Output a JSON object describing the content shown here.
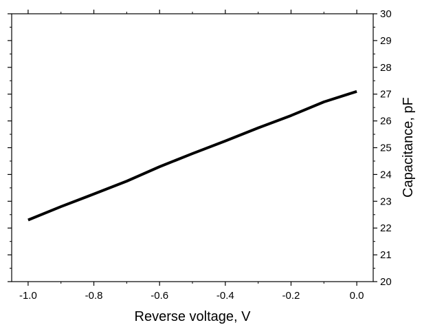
{
  "chart_data": {
    "type": "line",
    "title": "",
    "xlabel": "Reverse voltage, V",
    "ylabel": "Capacitance, pF",
    "y_axis_side": "right",
    "xlim": [
      -1.05,
      0.05
    ],
    "ylim": [
      20,
      30
    ],
    "x_ticks": [
      -1.0,
      -0.8,
      -0.6,
      -0.4,
      -0.2,
      0.0
    ],
    "x_tick_labels": [
      "-1.0",
      "-0.8",
      "-0.6",
      "-0.4",
      "-0.2",
      "0.0"
    ],
    "y_ticks": [
      20,
      21,
      22,
      23,
      24,
      25,
      26,
      27,
      28,
      29,
      30
    ],
    "y_tick_labels": [
      "20",
      "21",
      "22",
      "23",
      "24",
      "25",
      "26",
      "27",
      "28",
      "29",
      "30"
    ],
    "grid": false,
    "legend": "none",
    "series": [
      {
        "color": "#000000",
        "x": [
          -1.0,
          -0.9,
          -0.8,
          -0.7,
          -0.6,
          -0.5,
          -0.4,
          -0.3,
          -0.2,
          -0.1,
          0.0
        ],
        "y": [
          22.3,
          22.8,
          23.27,
          23.75,
          24.29,
          24.78,
          25.25,
          25.74,
          26.2,
          26.71,
          27.1
        ]
      }
    ]
  }
}
